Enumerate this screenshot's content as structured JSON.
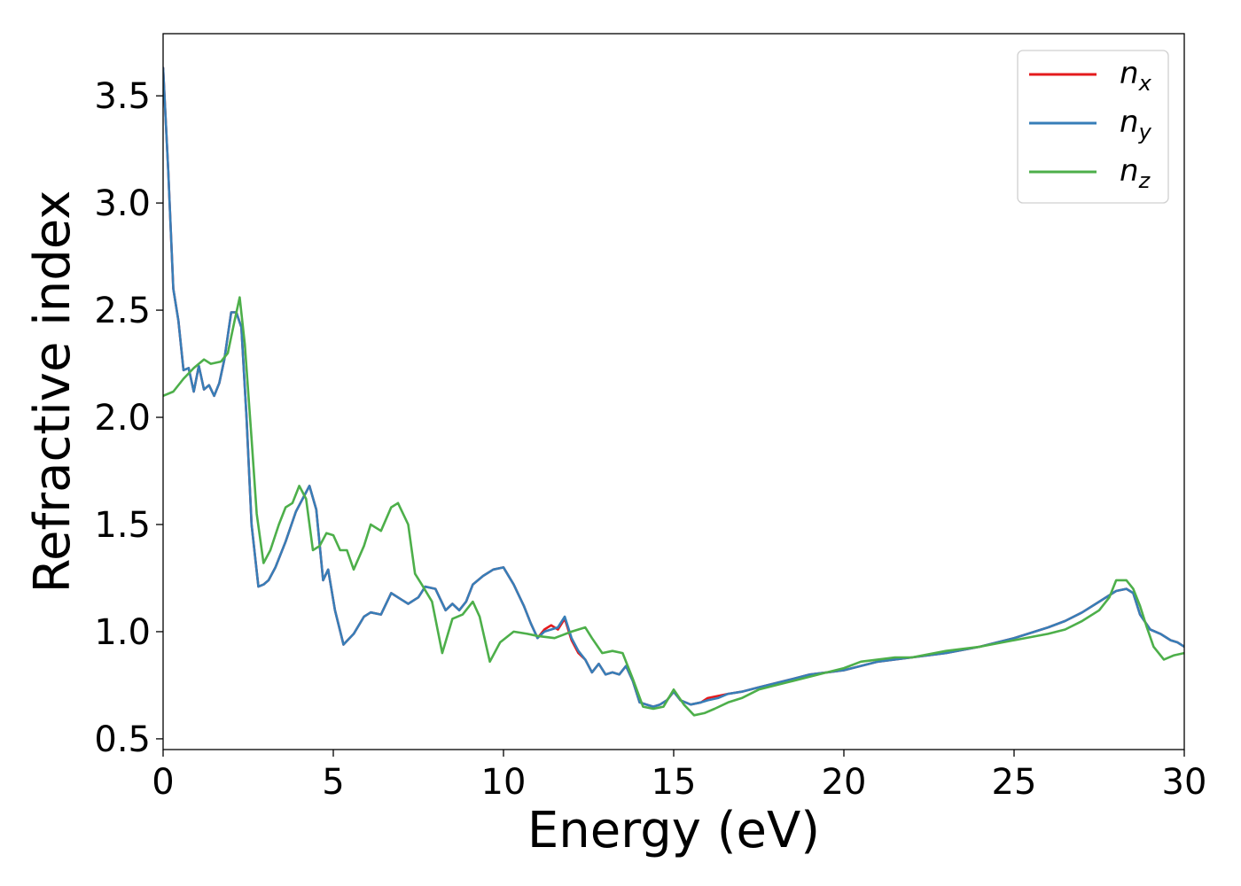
{
  "chart_data": {
    "type": "line",
    "title": "",
    "xlabel": "Energy (eV)",
    "ylabel": "Refractive index",
    "xlim": [
      0,
      30
    ],
    "ylim": [
      0.45,
      3.79
    ],
    "xticks": [
      0,
      5,
      10,
      15,
      20,
      25,
      30
    ],
    "xtick_labels": [
      "0",
      "5",
      "10",
      "15",
      "20",
      "25",
      "30"
    ],
    "yticks": [
      0.5,
      1.0,
      1.5,
      2.0,
      2.5,
      3.0,
      3.5
    ],
    "ytick_labels": [
      "0.5",
      "1.0",
      "1.5",
      "2.0",
      "2.5",
      "3.0",
      "3.5"
    ],
    "grid": false,
    "legend_position": "top-right",
    "series": [
      {
        "name": "n",
        "subscript": "x",
        "color": "#e41a1c",
        "x": [
          0,
          0.15,
          0.3,
          0.45,
          0.6,
          0.75,
          0.9,
          1.05,
          1.2,
          1.35,
          1.5,
          1.65,
          1.8,
          2.0,
          2.15,
          2.3,
          2.45,
          2.6,
          2.8,
          2.95,
          3.1,
          3.3,
          3.6,
          3.9,
          4.1,
          4.3,
          4.5,
          4.7,
          4.85,
          5.05,
          5.3,
          5.6,
          5.9,
          6.1,
          6.4,
          6.7,
          7.0,
          7.2,
          7.5,
          7.7,
          8.0,
          8.3,
          8.5,
          8.7,
          8.9,
          9.1,
          9.4,
          9.7,
          10.0,
          10.3,
          10.6,
          10.8,
          11.0,
          11.2,
          11.4,
          11.6,
          11.8,
          12.0,
          12.2,
          12.4,
          12.6,
          12.8,
          13.0,
          13.2,
          13.4,
          13.6,
          13.8,
          14.0,
          14.2,
          14.4,
          14.6,
          14.8,
          15.0,
          15.2,
          15.5,
          15.8,
          16.0,
          16.3,
          16.6,
          17.0,
          17.5,
          18.0,
          18.5,
          19.0,
          19.5,
          20.0,
          21.0,
          22.0,
          23.0,
          24.0,
          25.0,
          26.0,
          26.5,
          27.0,
          27.5,
          28.0,
          28.3,
          28.5,
          28.7,
          29.0,
          29.3,
          29.6,
          29.8,
          30.0
        ],
        "y": [
          3.63,
          3.15,
          2.6,
          2.45,
          2.22,
          2.23,
          2.12,
          2.24,
          2.13,
          2.15,
          2.1,
          2.16,
          2.27,
          2.49,
          2.49,
          2.42,
          2.0,
          1.5,
          1.21,
          1.22,
          1.24,
          1.3,
          1.42,
          1.56,
          1.62,
          1.68,
          1.57,
          1.24,
          1.29,
          1.1,
          0.94,
          0.99,
          1.07,
          1.09,
          1.08,
          1.18,
          1.15,
          1.13,
          1.16,
          1.21,
          1.2,
          1.1,
          1.13,
          1.1,
          1.14,
          1.22,
          1.26,
          1.29,
          1.3,
          1.22,
          1.12,
          1.04,
          0.97,
          1.01,
          1.03,
          1.01,
          1.06,
          0.96,
          0.9,
          0.87,
          0.81,
          0.85,
          0.8,
          0.81,
          0.8,
          0.84,
          0.77,
          0.67,
          0.66,
          0.65,
          0.66,
          0.68,
          0.72,
          0.68,
          0.66,
          0.67,
          0.69,
          0.7,
          0.71,
          0.72,
          0.74,
          0.76,
          0.78,
          0.8,
          0.81,
          0.82,
          0.86,
          0.88,
          0.9,
          0.93,
          0.97,
          1.02,
          1.05,
          1.09,
          1.14,
          1.19,
          1.2,
          1.18,
          1.08,
          1.01,
          0.99,
          0.96,
          0.95,
          0.93
        ]
      },
      {
        "name": "n",
        "subscript": "y",
        "color": "#377eb8",
        "x": [
          0,
          0.15,
          0.3,
          0.45,
          0.6,
          0.75,
          0.9,
          1.05,
          1.2,
          1.35,
          1.5,
          1.65,
          1.8,
          2.0,
          2.15,
          2.3,
          2.45,
          2.6,
          2.8,
          2.95,
          3.1,
          3.3,
          3.6,
          3.9,
          4.1,
          4.3,
          4.5,
          4.7,
          4.85,
          5.05,
          5.3,
          5.6,
          5.9,
          6.1,
          6.4,
          6.7,
          7.0,
          7.2,
          7.5,
          7.7,
          8.0,
          8.3,
          8.5,
          8.7,
          8.9,
          9.1,
          9.4,
          9.7,
          10.0,
          10.3,
          10.6,
          10.8,
          11.0,
          11.2,
          11.4,
          11.6,
          11.8,
          12.0,
          12.2,
          12.4,
          12.6,
          12.8,
          13.0,
          13.2,
          13.4,
          13.6,
          13.8,
          14.0,
          14.2,
          14.4,
          14.6,
          14.8,
          15.0,
          15.2,
          15.5,
          15.8,
          16.0,
          16.3,
          16.6,
          17.0,
          17.5,
          18.0,
          18.5,
          19.0,
          19.5,
          20.0,
          21.0,
          22.0,
          23.0,
          24.0,
          25.0,
          26.0,
          26.5,
          27.0,
          27.5,
          28.0,
          28.3,
          28.5,
          28.7,
          29.0,
          29.3,
          29.6,
          29.8,
          30.0
        ],
        "y": [
          3.63,
          3.15,
          2.6,
          2.45,
          2.22,
          2.23,
          2.12,
          2.24,
          2.13,
          2.15,
          2.1,
          2.16,
          2.27,
          2.49,
          2.49,
          2.42,
          2.0,
          1.5,
          1.21,
          1.22,
          1.24,
          1.3,
          1.42,
          1.56,
          1.62,
          1.68,
          1.57,
          1.24,
          1.29,
          1.1,
          0.94,
          0.99,
          1.07,
          1.09,
          1.08,
          1.18,
          1.15,
          1.13,
          1.16,
          1.21,
          1.2,
          1.1,
          1.13,
          1.1,
          1.14,
          1.22,
          1.26,
          1.29,
          1.3,
          1.22,
          1.12,
          1.04,
          0.97,
          1.0,
          1.01,
          1.02,
          1.07,
          0.97,
          0.91,
          0.87,
          0.81,
          0.85,
          0.8,
          0.81,
          0.8,
          0.84,
          0.77,
          0.67,
          0.66,
          0.65,
          0.66,
          0.68,
          0.72,
          0.68,
          0.66,
          0.67,
          0.68,
          0.69,
          0.71,
          0.72,
          0.74,
          0.76,
          0.78,
          0.8,
          0.81,
          0.82,
          0.86,
          0.88,
          0.9,
          0.93,
          0.97,
          1.02,
          1.05,
          1.09,
          1.14,
          1.19,
          1.2,
          1.18,
          1.08,
          1.01,
          0.99,
          0.96,
          0.95,
          0.93
        ]
      },
      {
        "name": "n",
        "subscript": "z",
        "color": "#4daf4a",
        "x": [
          0,
          0.3,
          0.6,
          0.9,
          1.2,
          1.4,
          1.7,
          1.9,
          2.1,
          2.25,
          2.4,
          2.6,
          2.75,
          2.95,
          3.15,
          3.4,
          3.6,
          3.8,
          4.0,
          4.2,
          4.4,
          4.6,
          4.8,
          5.0,
          5.2,
          5.4,
          5.6,
          5.9,
          6.1,
          6.4,
          6.7,
          6.9,
          7.2,
          7.4,
          7.6,
          7.9,
          8.2,
          8.5,
          8.8,
          9.1,
          9.3,
          9.6,
          9.9,
          10.3,
          10.7,
          11.0,
          11.5,
          12.0,
          12.4,
          12.6,
          12.9,
          13.2,
          13.5,
          13.8,
          14.1,
          14.4,
          14.7,
          15.0,
          15.3,
          15.6,
          15.9,
          16.2,
          16.6,
          17.0,
          17.5,
          18.0,
          18.5,
          19.0,
          19.5,
          20.0,
          20.5,
          21.0,
          21.5,
          22.0,
          23.0,
          24.0,
          25.0,
          26.0,
          26.5,
          27.0,
          27.5,
          27.8,
          28.0,
          28.3,
          28.5,
          28.7,
          28.9,
          29.1,
          29.4,
          29.7,
          30.0
        ],
        "y": [
          2.1,
          2.12,
          2.18,
          2.23,
          2.27,
          2.25,
          2.26,
          2.3,
          2.45,
          2.56,
          2.34,
          1.9,
          1.55,
          1.32,
          1.38,
          1.5,
          1.58,
          1.6,
          1.68,
          1.62,
          1.38,
          1.4,
          1.46,
          1.45,
          1.38,
          1.38,
          1.29,
          1.4,
          1.5,
          1.47,
          1.58,
          1.6,
          1.5,
          1.27,
          1.22,
          1.14,
          0.9,
          1.06,
          1.08,
          1.14,
          1.07,
          0.86,
          0.95,
          1.0,
          0.99,
          0.98,
          0.97,
          1.0,
          1.02,
          0.97,
          0.9,
          0.91,
          0.9,
          0.78,
          0.65,
          0.64,
          0.65,
          0.73,
          0.66,
          0.61,
          0.62,
          0.64,
          0.67,
          0.69,
          0.73,
          0.75,
          0.77,
          0.79,
          0.81,
          0.83,
          0.86,
          0.87,
          0.88,
          0.88,
          0.91,
          0.93,
          0.96,
          0.99,
          1.01,
          1.05,
          1.1,
          1.16,
          1.24,
          1.24,
          1.2,
          1.12,
          1.02,
          0.93,
          0.87,
          0.89,
          0.9
        ]
      }
    ]
  }
}
